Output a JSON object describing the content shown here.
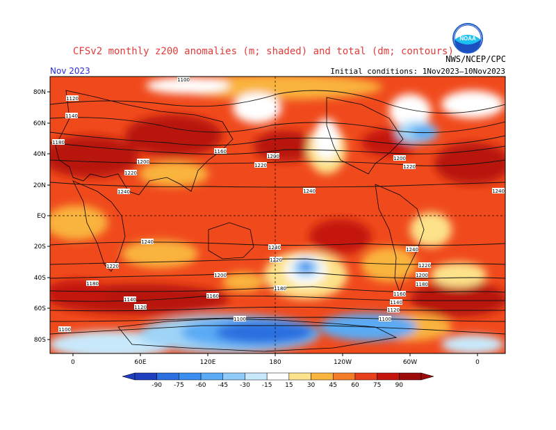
{
  "header": {
    "title": "CFSv2 monthly z200 anomalies (m; shaded) and total (dm; contours)",
    "month": "Nov 2023",
    "agency": "NWS/NCEP/CPC",
    "initial_conditions": "Initial conditions: 1Nov2023–10Nov2023",
    "logo_text": "NOAA"
  },
  "axes": {
    "lat_labels": [
      "80N",
      "60N",
      "40N",
      "20N",
      "EQ",
      "20S",
      "40S",
      "60S",
      "80S"
    ],
    "lon_labels": [
      "0",
      "60E",
      "120E",
      "180",
      "120W",
      "60W",
      "0"
    ]
  },
  "contour_labels": [
    "1100",
    "1120",
    "1140",
    "1160",
    "1180",
    "1200",
    "1220",
    "1240"
  ],
  "colorbar": {
    "ticks": [
      "-90",
      "-75",
      "-60",
      "-45",
      "-30",
      "-15",
      "15",
      "30",
      "45",
      "60",
      "75",
      "90"
    ],
    "colors": [
      "#1f3fbf",
      "#2b6fe0",
      "#3a8ef0",
      "#5aaaf5",
      "#8fcaf8",
      "#c8e9fb",
      "#ffffff",
      "#fde28a",
      "#f9b43e",
      "#f47d2a",
      "#e8401c",
      "#c4140e",
      "#9c0a0a"
    ]
  },
  "map_colors": {
    "ocean_base": "#f04a1c",
    "positive_strong": "#b8120e",
    "positive_mid": "#e8401c",
    "positive_light": "#f9b43e",
    "neutral": "#ffffff",
    "negative_light": "#9fd4f7",
    "negative_strong": "#2b6fe0"
  }
}
